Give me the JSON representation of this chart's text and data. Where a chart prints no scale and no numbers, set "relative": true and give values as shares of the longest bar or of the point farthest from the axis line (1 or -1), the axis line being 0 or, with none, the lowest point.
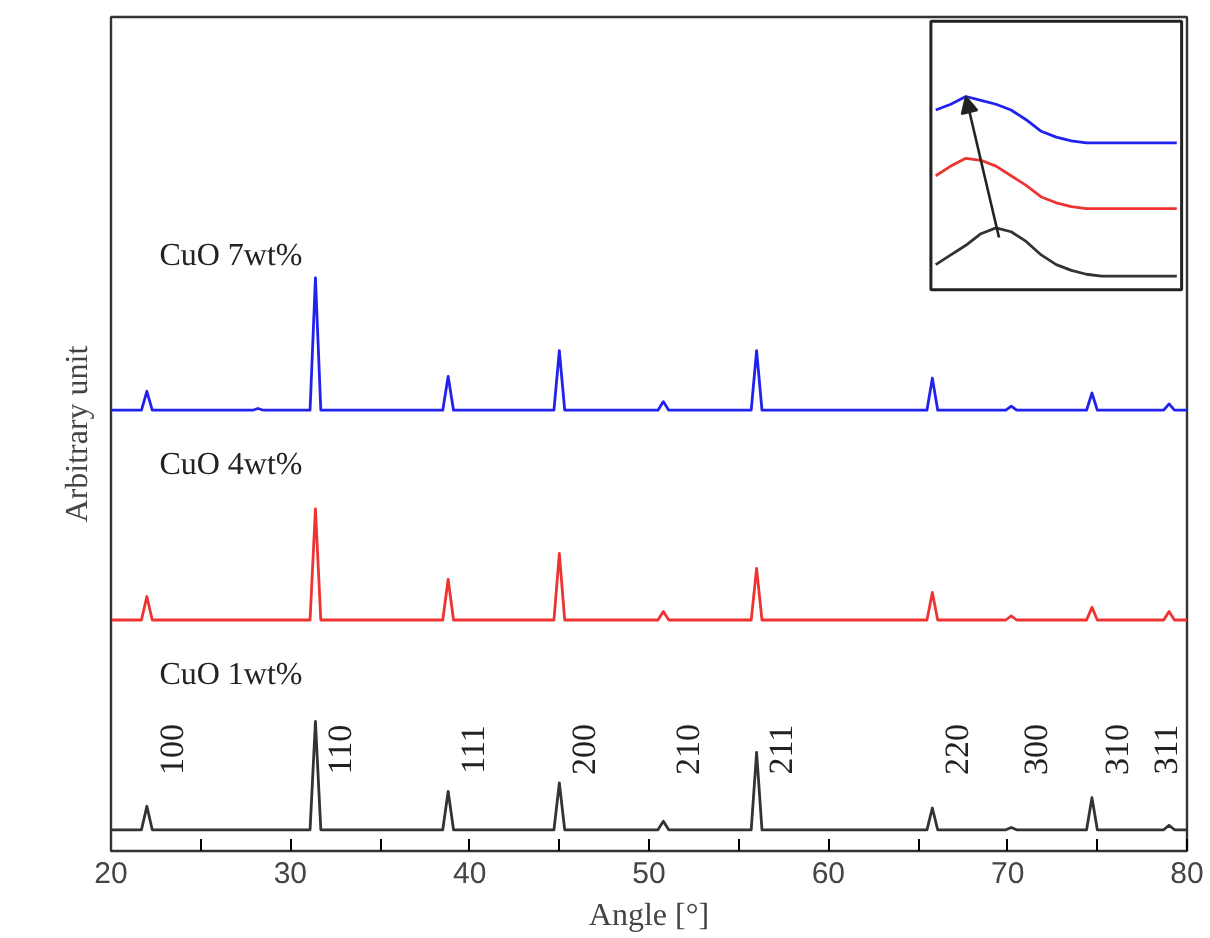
{
  "chart_data": [
    {
      "type": "line",
      "xlabel": "Angle [°]",
      "ylabel": "Arbitrary unit",
      "relative": true,
      "xlim": [
        20,
        80
      ],
      "xticks": [
        20,
        {
          "value": 25,
          "label": null
        },
        30,
        {
          "value": 35,
          "label": null
        },
        40,
        {
          "value": 45,
          "label": null
        },
        50,
        {
          "value": 55,
          "label": null
        },
        60,
        {
          "value": 65,
          "label": null
        },
        70,
        {
          "value": 75,
          "label": null
        },
        80
      ],
      "tick_labels": "x",
      "grid": false,
      "marker": "none",
      "line_style": "solid",
      "series": [
        {
          "name": "CuO 1wt%",
          "color": "#333333",
          "x": [
            20,
            21.7,
            22.0,
            22.3,
            31.1,
            31.4,
            31.7,
            38.5,
            38.8,
            39.1,
            44.7,
            45.0,
            45.3,
            50.5,
            50.8,
            51.1,
            55.7,
            56.0,
            56.3,
            65.5,
            65.8,
            66.1,
            69.9,
            70.2,
            70.5,
            74.4,
            74.7,
            75.0,
            78.7,
            79.0,
            79.3,
            80
          ],
          "values": [
            0.037,
            0.037,
            0.078,
            0.037,
            0.037,
            0.226,
            0.037,
            0.037,
            0.104,
            0.037,
            0.037,
            0.119,
            0.037,
            0.037,
            0.052,
            0.037,
            0.037,
            0.172,
            0.037,
            0.037,
            0.075,
            0.037,
            0.037,
            0.041,
            0.037,
            0.037,
            0.093,
            0.037,
            0.037,
            0.045,
            0.037,
            0.037
          ]
        },
        {
          "name": "CuO 4wt%",
          "color": "#ee3333",
          "x": [
            20,
            21.7,
            22.0,
            22.3,
            31.1,
            31.4,
            31.7,
            38.5,
            38.8,
            39.1,
            44.7,
            45.0,
            45.3,
            50.5,
            50.8,
            51.1,
            55.7,
            56.0,
            56.3,
            65.5,
            65.8,
            66.1,
            69.9,
            70.2,
            70.5,
            74.4,
            74.7,
            75.0,
            78.7,
            79.0,
            79.3,
            80
          ],
          "values": [
            0.403,
            0.403,
            0.444,
            0.403,
            0.403,
            0.597,
            0.403,
            0.403,
            0.474,
            0.403,
            0.403,
            0.519,
            0.403,
            0.403,
            0.418,
            0.403,
            0.403,
            0.493,
            0.403,
            0.403,
            0.451,
            0.403,
            0.403,
            0.41,
            0.403,
            0.403,
            0.425,
            0.403,
            0.403,
            0.418,
            0.403,
            0.403
          ]
        },
        {
          "name": "CuO 7wt%",
          "color": "#2222ee",
          "x": [
            20,
            21.7,
            22.0,
            22.3,
            27.9,
            28.2,
            28.5,
            31.1,
            31.4,
            31.7,
            38.5,
            38.8,
            39.1,
            44.7,
            45.0,
            45.3,
            50.5,
            50.8,
            51.1,
            55.7,
            56.0,
            56.3,
            65.5,
            65.8,
            66.1,
            69.9,
            70.2,
            70.5,
            74.4,
            74.7,
            75.0,
            78.7,
            79.0,
            79.3,
            80
          ],
          "values": [
            0.769,
            0.769,
            0.802,
            0.769,
            0.769,
            0.772,
            0.769,
            0.769,
            1.0,
            0.769,
            0.769,
            0.828,
            0.769,
            0.769,
            0.873,
            0.769,
            0.769,
            0.784,
            0.769,
            0.769,
            0.873,
            0.769,
            0.769,
            0.825,
            0.769,
            0.769,
            0.776,
            0.769,
            0.769,
            0.799,
            0.769,
            0.769,
            0.78,
            0.769,
            0.769
          ]
        }
      ],
      "annotations": [
        "100",
        "110",
        "111",
        "200",
        "210",
        "211",
        "220",
        "300",
        "310",
        "311"
      ]
    },
    {
      "type": "line",
      "relative": true,
      "grid": false,
      "marker": "none",
      "line_style": "solid",
      "categories": [
        null,
        null,
        null,
        null,
        null,
        null,
        null,
        null,
        null,
        null,
        null,
        null,
        null,
        null,
        null,
        null,
        null
      ],
      "series": [
        {
          "color": "#333333",
          "values": [
            0.13,
            0.18,
            0.23,
            0.29,
            0.32,
            0.3,
            0.25,
            0.18,
            0.13,
            0.1,
            0.08,
            0.07,
            0.07,
            0.07,
            0.07,
            0.07,
            0.07
          ]
        },
        {
          "color": "#ee3333",
          "values": [
            0.59,
            0.64,
            0.68,
            0.67,
            0.64,
            0.59,
            0.54,
            0.48,
            0.45,
            0.43,
            0.42,
            0.42,
            0.42,
            0.42,
            0.42,
            0.42,
            0.42
          ]
        },
        {
          "color": "#2222ee",
          "values": [
            0.93,
            0.96,
            1.0,
            0.98,
            0.96,
            0.93,
            0.88,
            0.82,
            0.79,
            0.77,
            0.76,
            0.76,
            0.76,
            0.76,
            0.76,
            0.76,
            0.76
          ]
        }
      ]
    }
  ]
}
